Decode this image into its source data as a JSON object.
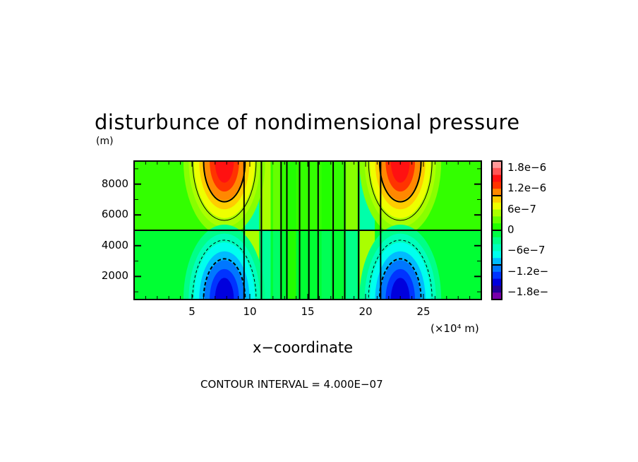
{
  "chart_data": {
    "type": "heatmap",
    "title": "disturbunce of nondimensional pressure",
    "ylabel_unit": "(m)",
    "xlabel": "x−coordinate",
    "xunit": "(×10⁴ m)",
    "footnote": "CONTOUR INTERVAL = 4.000E−07",
    "xlim": [
      0,
      30
    ],
    "ylim": [
      500,
      9500
    ],
    "xticks": [
      {
        "value": 5,
        "label": "5"
      },
      {
        "value": 10,
        "label": "10"
      },
      {
        "value": 15,
        "label": "15"
      },
      {
        "value": 20,
        "label": "20"
      },
      {
        "value": 25,
        "label": "25"
      }
    ],
    "yticks": [
      {
        "value": 2000,
        "label": "2000"
      },
      {
        "value": 4000,
        "label": "4000"
      },
      {
        "value": 6000,
        "label": "6000"
      },
      {
        "value": 8000,
        "label": "8000"
      }
    ],
    "contour_interval": 4e-07,
    "colorbar": {
      "range": [
        -2e-06,
        2e-06
      ],
      "labels": [
        {
          "value": 1.8e-06,
          "label": "1.8e−6"
        },
        {
          "value": 1.2e-06,
          "label": "1.2e−6"
        },
        {
          "value": 6e-07,
          "label": "6e−7"
        },
        {
          "value": 0,
          "label": "0"
        },
        {
          "value": -6e-07,
          "label": "−6e−7"
        },
        {
          "value": -1.2e-06,
          "label": "−1.2e−"
        },
        {
          "value": -1.8e-06,
          "label": "−1.8e−"
        }
      ],
      "colors": [
        "#ff9999",
        "#ff5555",
        "#ff1111",
        "#ff3300",
        "#ff8800",
        "#ffcc00",
        "#eeff00",
        "#aaff00",
        "#66ff00",
        "#22ff00",
        "#00ff44",
        "#00ff88",
        "#00ffbb",
        "#00ffee",
        "#00bbff",
        "#0077ff",
        "#0033ff",
        "#0000dd",
        "#220099",
        "#7700aa"
      ]
    },
    "features": [
      {
        "type": "positive-lobe",
        "x_center": 7.8,
        "y_range": [
          5000,
          9500
        ],
        "peak": 1.4e-06
      },
      {
        "type": "negative-lobe",
        "x_center": 7.8,
        "y_range": [
          500,
          5000
        ],
        "peak": -1.4e-06
      },
      {
        "type": "positive-lobe",
        "x_center": 23.0,
        "y_range": [
          5000,
          9500
        ],
        "peak": 1.4e-06
      },
      {
        "type": "negative-lobe",
        "x_center": 23.0,
        "y_range": [
          500,
          5000
        ],
        "peak": -1.4e-06
      }
    ],
    "grid": false
  }
}
